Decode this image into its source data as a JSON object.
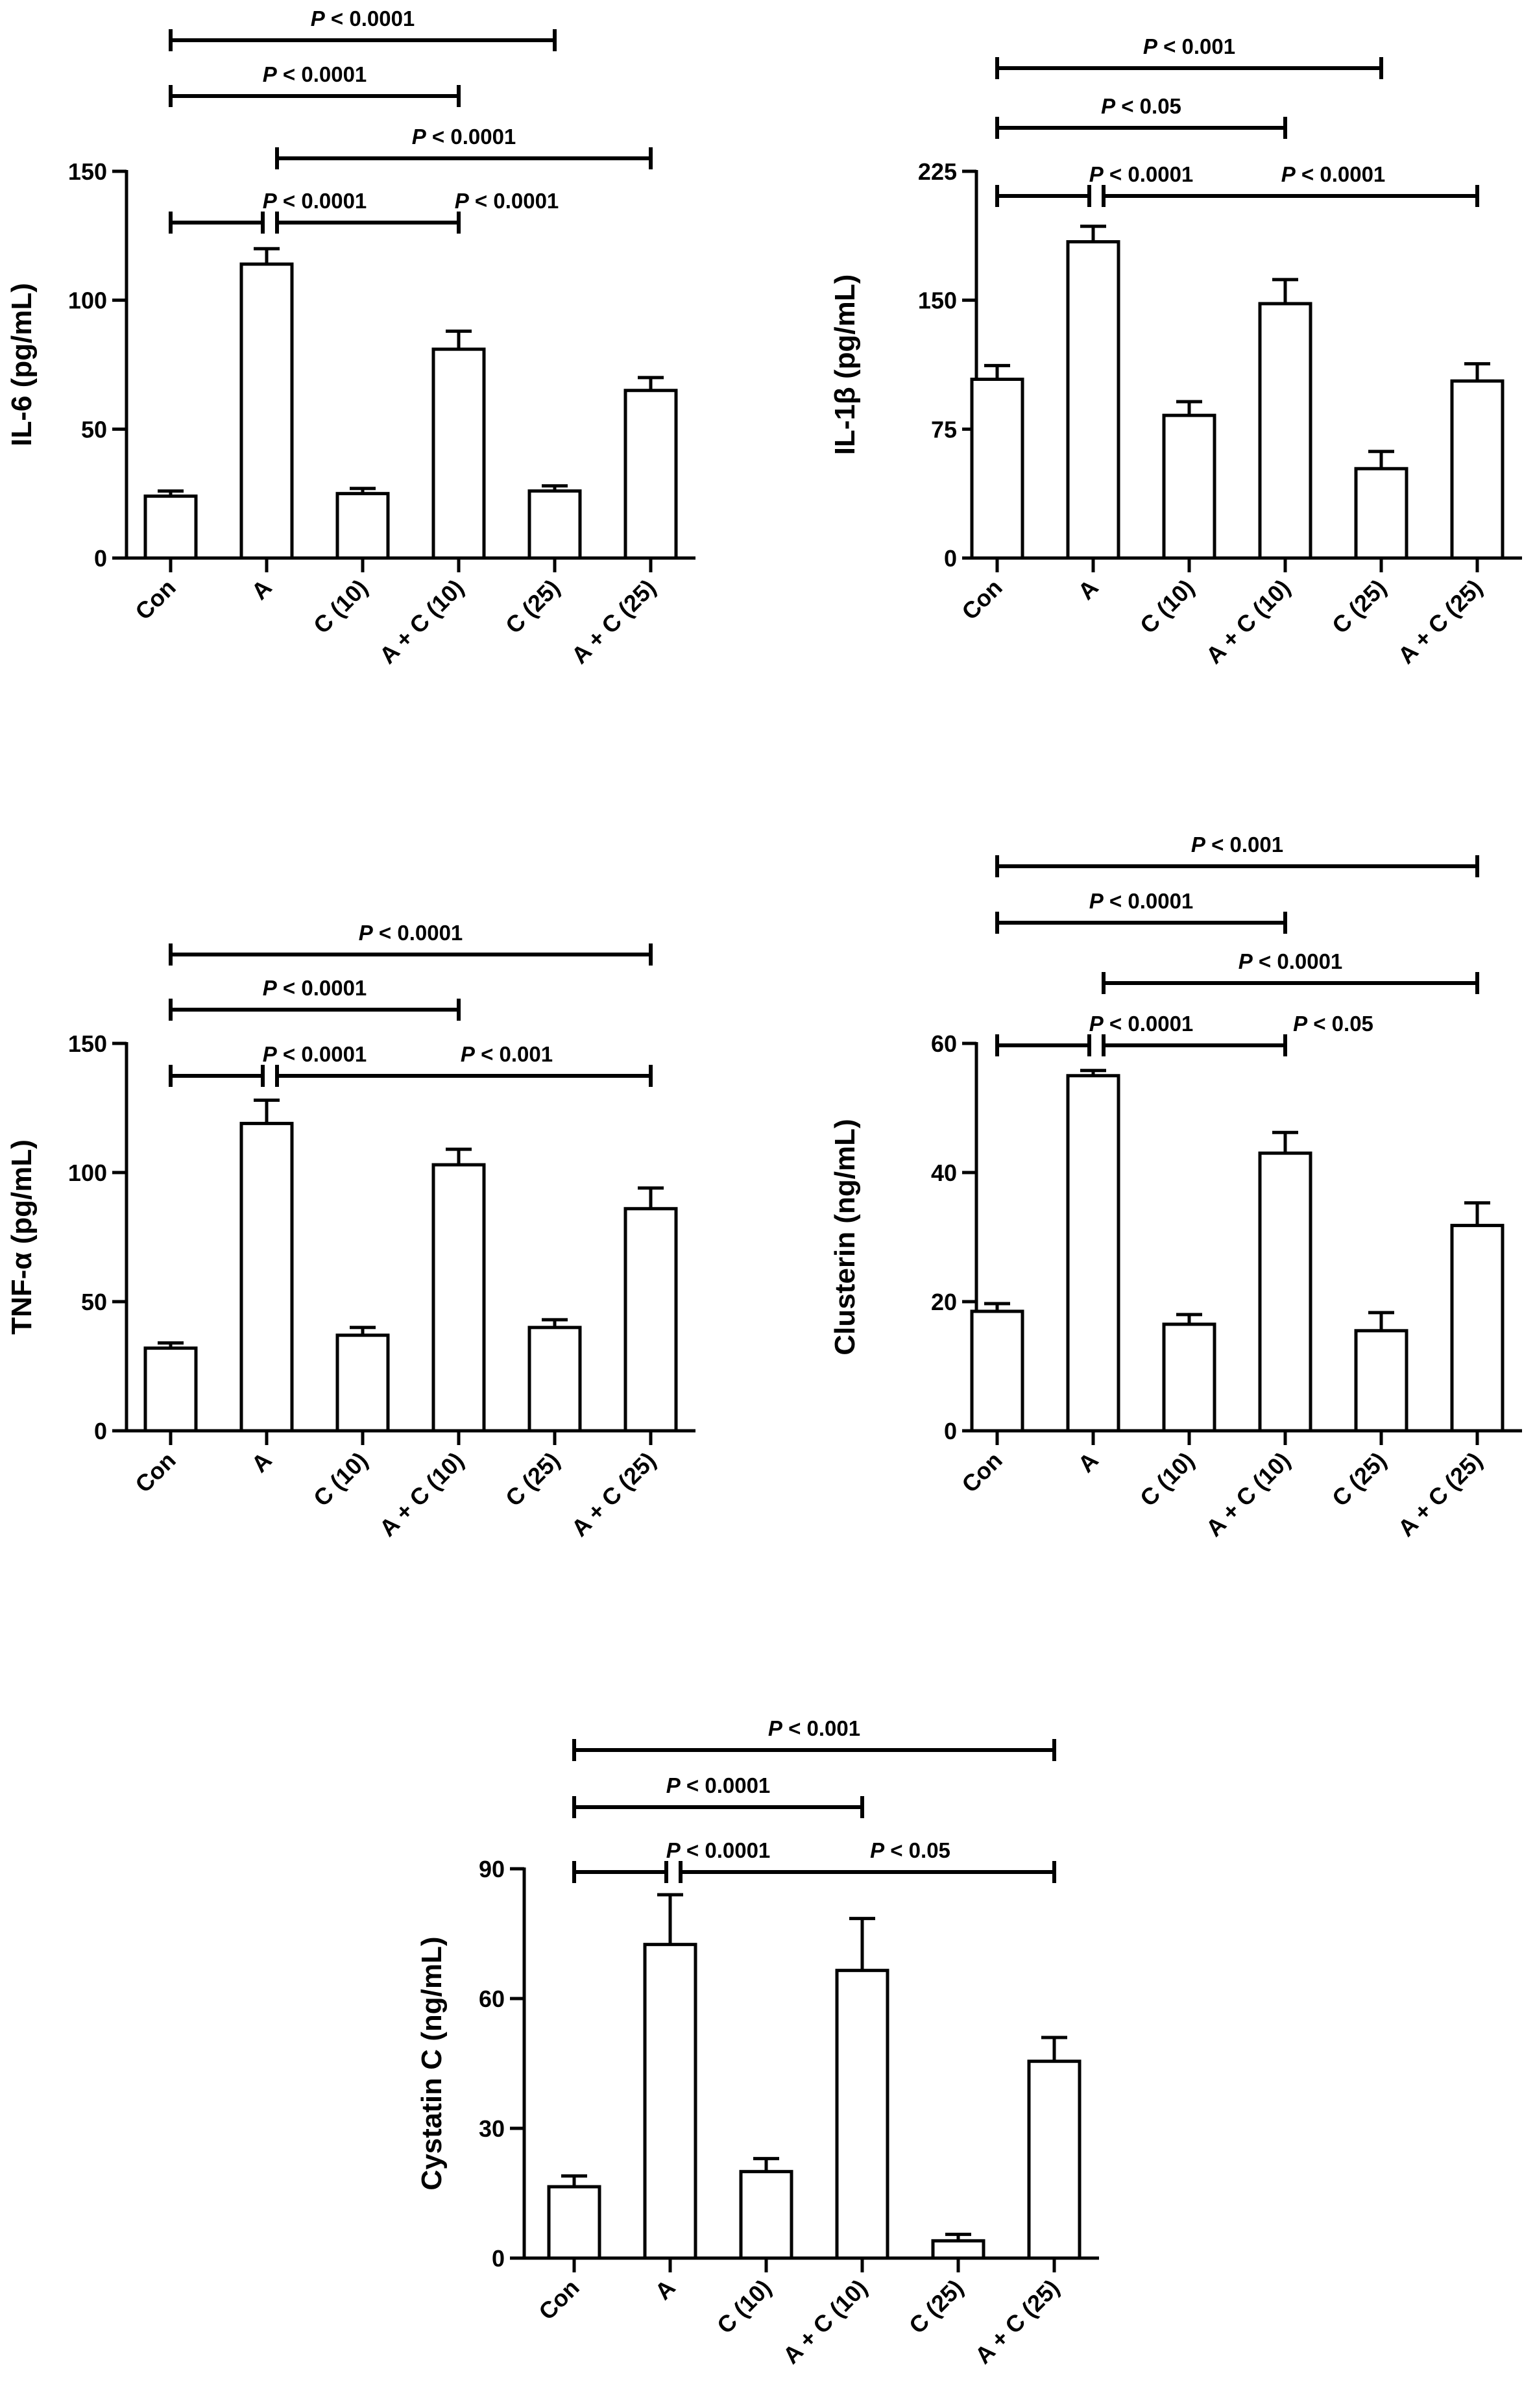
{
  "chart_data": [
    {
      "type": "bar",
      "ylabel": "IL-6 (pg/mL)",
      "categories": [
        "Con",
        "A",
        "C (10)",
        "A + C (10)",
        "C (25)",
        "A + C (25)"
      ],
      "values": [
        24,
        114,
        25,
        81,
        26,
        65
      ],
      "errors": [
        2,
        6,
        2,
        7,
        2,
        5
      ],
      "ylim": [
        0,
        150
      ],
      "yticks": [
        0,
        50,
        100,
        150
      ],
      "ytick_labels": [
        "0",
        "50",
        "100",
        "150"
      ],
      "significance": [
        {
          "from": 0,
          "to": 4,
          "label": "P < 0.0001"
        },
        {
          "from": 0,
          "to": 3,
          "label": "P < 0.0001"
        },
        {
          "from": 1,
          "to": 5,
          "label": "P < 0.0001"
        },
        {
          "from": 0,
          "to": 1,
          "label": "P < 0.0001"
        },
        {
          "from": 1,
          "to": 3,
          "label": "P < 0.0001"
        }
      ]
    },
    {
      "type": "bar",
      "ylabel": "IL-1β (pg/mL)",
      "categories": [
        "Con",
        "A",
        "C (10)",
        "A + C (10)",
        "C (25)",
        "A + C (25)"
      ],
      "values": [
        104,
        184,
        83,
        148,
        52,
        103
      ],
      "errors": [
        8,
        9,
        8,
        14,
        10,
        10
      ],
      "ylim": [
        0,
        225
      ],
      "yticks": [
        0,
        75,
        150,
        225
      ],
      "ytick_labels": [
        "0",
        "75",
        "150",
        "225"
      ],
      "significance": [
        {
          "from": 0,
          "to": 4,
          "label": "P < 0.001"
        },
        {
          "from": 0,
          "to": 3,
          "label": "P < 0.05"
        },
        {
          "from": 0,
          "to": 1,
          "label": "P < 0.0001"
        },
        {
          "from": 1,
          "to": 5,
          "label": "P < 0.0001"
        }
      ]
    },
    {
      "type": "bar",
      "ylabel": "TNF-α (pg/mL)",
      "categories": [
        "Con",
        "A",
        "C (10)",
        "A + C (10)",
        "C (25)",
        "A + C (25)"
      ],
      "values": [
        32,
        119,
        37,
        103,
        40,
        86
      ],
      "errors": [
        2,
        9,
        3,
        6,
        3,
        8
      ],
      "ylim": [
        0,
        150
      ],
      "yticks": [
        0,
        50,
        100,
        150
      ],
      "ytick_labels": [
        "0",
        "50",
        "100",
        "150"
      ],
      "significance": [
        {
          "from": 0,
          "to": 5,
          "label": "P < 0.0001"
        },
        {
          "from": 0,
          "to": 3,
          "label": "P < 0.0001"
        },
        {
          "from": 0,
          "to": 1,
          "label": "P < 0.0001"
        },
        {
          "from": 1,
          "to": 5,
          "label": "P < 0.001"
        }
      ]
    },
    {
      "type": "bar",
      "ylabel": "Clusterin (ng/mL)",
      "categories": [
        "Con",
        "A",
        "C (10)",
        "A + C (10)",
        "C (25)",
        "A + C (25)"
      ],
      "values": [
        18.5,
        55,
        16.5,
        43,
        15.5,
        31.8
      ],
      "errors": [
        1.2,
        0.8,
        1.5,
        3.2,
        2.8,
        3.5
      ],
      "ylim": [
        0,
        60
      ],
      "yticks": [
        0,
        20,
        40,
        60
      ],
      "ytick_labels": [
        "0",
        "20",
        "40",
        "60"
      ],
      "significance": [
        {
          "from": 0,
          "to": 5,
          "label": "P < 0.001"
        },
        {
          "from": 0,
          "to": 3,
          "label": "P < 0.0001"
        },
        {
          "from": 1,
          "to": 5,
          "label": "P < 0.0001"
        },
        {
          "from": 0,
          "to": 1,
          "label": "P < 0.0001"
        },
        {
          "from": 1,
          "to": 3,
          "label": "P < 0.05"
        }
      ]
    },
    {
      "type": "bar",
      "ylabel": "Cystatin C (ng/mL)",
      "categories": [
        "Con",
        "A",
        "C (10)",
        "A + C (10)",
        "C (25)",
        "A + C (25)"
      ],
      "values": [
        16.5,
        72.5,
        20,
        66.5,
        4,
        45.5
      ],
      "errors": [
        2.5,
        11.5,
        3,
        12,
        1.5,
        5.5
      ],
      "ylim": [
        0,
        90
      ],
      "yticks": [
        0,
        30,
        60,
        90
      ],
      "ytick_labels": [
        "0",
        "30",
        "60",
        "90"
      ],
      "significance": [
        {
          "from": 0,
          "to": 5,
          "label": "P < 0.001"
        },
        {
          "from": 0,
          "to": 3,
          "label": "P < 0.0001"
        },
        {
          "from": 0,
          "to": 1,
          "label": "P < 0.0001"
        },
        {
          "from": 1,
          "to": 5,
          "label": "P < 0.05"
        }
      ]
    }
  ]
}
